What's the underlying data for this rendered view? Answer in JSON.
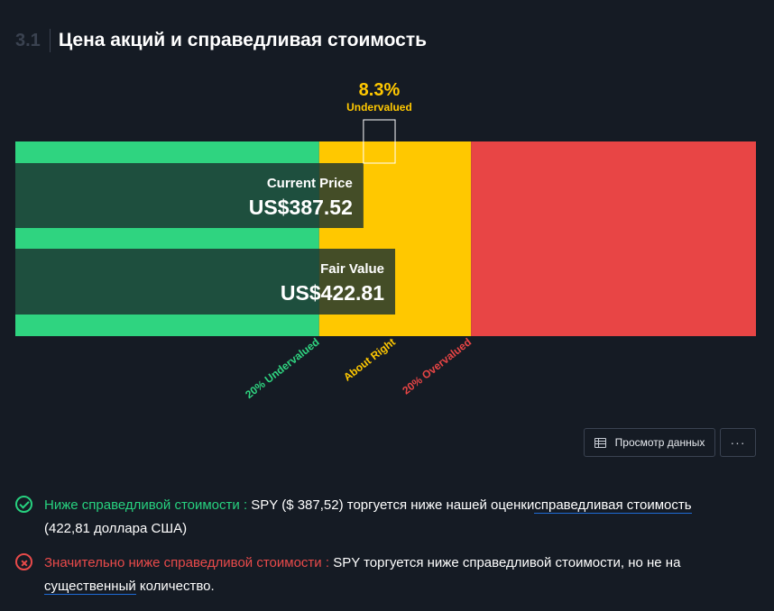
{
  "section": {
    "number": "3.1",
    "title": "Цена акций и справедливая стоимость"
  },
  "colors": {
    "background": "#151b24",
    "undervalued_zone": "#2fd480",
    "about_right_zone": "#ffc800",
    "overvalued_zone": "#e84545",
    "bar_overlay": "rgba(27,50,48,0.82)",
    "pass": "#27d17f",
    "fail": "#e84a4a"
  },
  "chart_data": {
    "type": "bar",
    "orientation": "horizontal",
    "currency": "US$",
    "categories": [
      "Current Price",
      "Fair Value"
    ],
    "values": [
      387.52,
      422.81
    ],
    "value_labels": [
      "US$387.52",
      "US$422.81"
    ],
    "difference": {
      "percent_label": "8.3%",
      "status_label": "Undervalued"
    },
    "zones": [
      {
        "label": "20% Undervalued",
        "color": "#2fd480"
      },
      {
        "label": "About Right",
        "color": "#ffc800"
      },
      {
        "label": "20% Overvalued",
        "color": "#e84545"
      }
    ]
  },
  "toolbar": {
    "view_data_label": "Просмотр данных",
    "more_label": "···"
  },
  "checks": [
    {
      "status": "pass",
      "label": "Ниже справедливой стоимости :",
      "text_before": " SPY ($ 387,52) торгуется ниже нашей оценки",
      "link": "справедливая стоимость",
      "text_after": " (422,81 доллара США)"
    },
    {
      "status": "fail",
      "label": "Значительно ниже справедливой стоимости :",
      "text_before": " SPY торгуется ниже справедливой стоимости, но не на ",
      "link": "существенный",
      "text_after": " количество."
    }
  ]
}
